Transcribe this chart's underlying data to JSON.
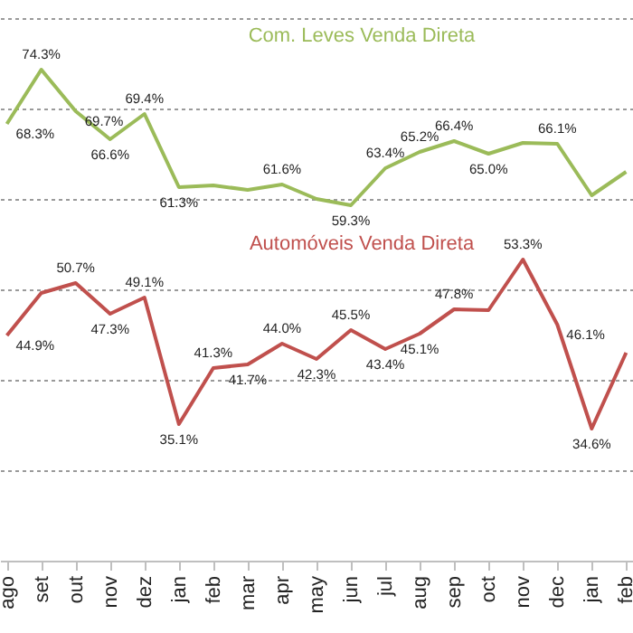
{
  "chart_data": {
    "type": "line",
    "categories": [
      "ago",
      "set",
      "out",
      "nov",
      "dez",
      "jan",
      "feb",
      "mar",
      "apr",
      "may",
      "jun",
      "jul",
      "aug",
      "sep",
      "oct",
      "nov",
      "dec",
      "jan",
      "feb"
    ],
    "series": [
      {
        "name": "Com. Leves Venda Direta",
        "color": "#9bbb59",
        "values": [
          68.3,
          74.3,
          69.7,
          66.6,
          69.4,
          61.3,
          61.5,
          61.0,
          61.6,
          60.0,
          59.3,
          63.4,
          65.2,
          66.4,
          65.0,
          66.2,
          66.1,
          60.4,
          63.0
        ],
        "value_labels": [
          "68.3%",
          "74.3%",
          "69.7%",
          "66.6%",
          "69.4%",
          "61.3%",
          null,
          null,
          "61.6%",
          null,
          "59.3%",
          "63.4%",
          "65.2%",
          "66.4%",
          "65.0%",
          null,
          "66.1%",
          null,
          null
        ]
      },
      {
        "name": "Automóveis Venda Direta",
        "color": "#c0504d",
        "values": [
          44.9,
          49.6,
          50.7,
          47.3,
          49.1,
          35.1,
          41.3,
          41.7,
          44.0,
          42.3,
          45.5,
          43.4,
          45.1,
          47.8,
          47.7,
          53.3,
          46.1,
          34.6,
          43.0
        ],
        "value_labels": [
          "44.9%",
          null,
          "50.7%",
          "47.3%",
          "49.1%",
          "35.1%",
          "41.3%",
          "41.7%",
          "44.0%",
          "42.3%",
          "45.5%",
          "43.4%",
          "45.1%",
          "47.8%",
          null,
          "53.3%",
          "46.1%",
          "34.6%",
          null
        ]
      }
    ],
    "ylim": [
      20,
      82
    ],
    "yticks": [
      {
        "value": 30,
        "label": null
      },
      {
        "value": 40,
        "label": null
      },
      {
        "value": 50,
        "label": null
      },
      {
        "value": 60,
        "label": null
      },
      {
        "value": 70,
        "label": null
      },
      {
        "value": 80,
        "label": null
      }
    ],
    "grid": "y",
    "tick_labels": "x"
  }
}
